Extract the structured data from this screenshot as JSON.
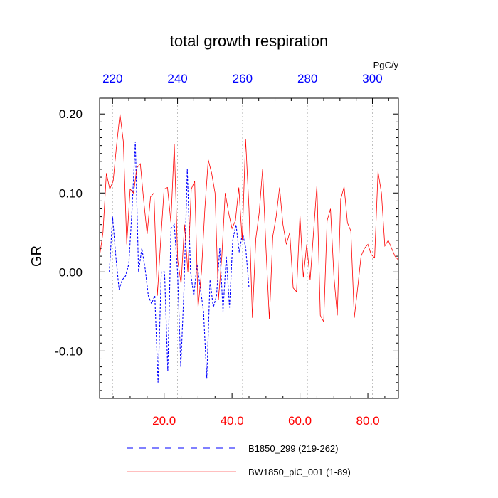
{
  "chart_data": {
    "type": "line",
    "title": "total growth respiration",
    "ylabel": "GR",
    "units": "PgC/y",
    "ylim": [
      -0.16,
      0.22
    ],
    "bottom_axis": {
      "xlim": [
        1,
        89
      ],
      "ticks": [
        20,
        40,
        60,
        80
      ],
      "tick_labels": [
        "20.0",
        "40.0",
        "60.0",
        "80.0"
      ],
      "color": "#ff0000"
    },
    "top_axis": {
      "xlim": [
        216,
        308
      ],
      "ticks": [
        220,
        240,
        260,
        280,
        300
      ],
      "tick_labels": [
        "220",
        "240",
        "260",
        "280",
        "300"
      ],
      "color": "#0000ff"
    },
    "y_ticks": [
      -0.1,
      0,
      0.1,
      0.2
    ],
    "y_tick_labels": [
      "-0.10",
      "0.00",
      "0.10",
      "0.20"
    ],
    "grid": "vertical dotted at top-axis ticks",
    "legend_position": "bottom",
    "series": [
      {
        "name": "B1850_299 (219-262)",
        "axis": "top",
        "style": "dashed",
        "color": "#0000ff",
        "x": [
          219,
          220,
          221,
          222,
          223,
          224,
          225,
          226,
          227,
          228,
          229,
          230,
          231,
          232,
          233,
          234,
          235,
          236,
          237,
          238,
          239,
          240,
          241,
          242,
          243,
          244,
          245,
          246,
          247,
          248,
          249,
          250,
          251,
          252,
          253,
          254,
          255,
          256,
          257,
          258,
          259,
          260,
          261,
          262
        ],
        "values": [
          0.0,
          0.07,
          0.02,
          -0.022,
          -0.01,
          -0.005,
          0.01,
          0.08,
          0.165,
          0.0,
          0.03,
          0.005,
          -0.03,
          -0.04,
          -0.03,
          -0.14,
          0.0,
          0.0,
          -0.125,
          0.055,
          0.06,
          0.0,
          -0.12,
          -0.02,
          0.13,
          0.0,
          -0.03,
          0.01,
          -0.02,
          -0.05,
          -0.135,
          -0.01,
          -0.045,
          -0.03,
          0.03,
          -0.05,
          0.02,
          -0.045,
          0.04,
          0.06,
          0.025,
          0.05,
          0.03,
          -0.02
        ]
      },
      {
        "name": "BW1850_piC_001 (1-89)",
        "axis": "bottom",
        "style": "solid",
        "color": "#ff0000",
        "x": [
          1,
          2,
          3,
          4,
          5,
          6,
          7,
          8,
          9,
          10,
          11,
          12,
          13,
          14,
          15,
          16,
          17,
          18,
          19,
          20,
          21,
          22,
          23,
          24,
          25,
          26,
          27,
          28,
          29,
          30,
          31,
          32,
          33,
          34,
          35,
          36,
          37,
          38,
          39,
          40,
          41,
          42,
          43,
          44,
          45,
          46,
          47,
          48,
          49,
          50,
          51,
          52,
          53,
          54,
          55,
          56,
          57,
          58,
          59,
          60,
          61,
          62,
          63,
          64,
          65,
          66,
          67,
          68,
          69,
          70,
          71,
          72,
          73,
          74,
          75,
          76,
          77,
          78,
          79,
          80,
          81,
          82,
          83,
          84,
          85,
          86,
          87,
          88,
          89
        ],
        "values": [
          0.02,
          0.05,
          0.125,
          0.105,
          0.115,
          0.16,
          0.2,
          0.165,
          0.035,
          0.105,
          0.1,
          0.132,
          0.137,
          0.09,
          0.048,
          0.095,
          0.1,
          -0.03,
          0.04,
          0.105,
          0.107,
          0.063,
          0.162,
          0.015,
          -0.015,
          0.06,
          0.0,
          0.105,
          0.115,
          -0.045,
          0.0,
          0.08,
          0.142,
          0.125,
          0.1,
          -0.035,
          0.02,
          0.1,
          0.075,
          0.055,
          0.065,
          0.107,
          0.04,
          0.168,
          0.08,
          -0.058,
          0.042,
          0.075,
          0.13,
          0.03,
          -0.06,
          0.045,
          0.07,
          0.107,
          0.06,
          0.035,
          0.05,
          -0.02,
          -0.025,
          0.072,
          -0.007,
          0.035,
          -0.01,
          0.05,
          0.11,
          -0.055,
          -0.063,
          0.065,
          0.08,
          -0.005,
          -0.055,
          0.092,
          0.108,
          0.062,
          0.052,
          -0.058,
          -0.02,
          0.02,
          0.03,
          0.035,
          0.022,
          0.018,
          0.127,
          0.1,
          0.033,
          0.04,
          0.03,
          0.02,
          0.015
        ]
      }
    ]
  }
}
